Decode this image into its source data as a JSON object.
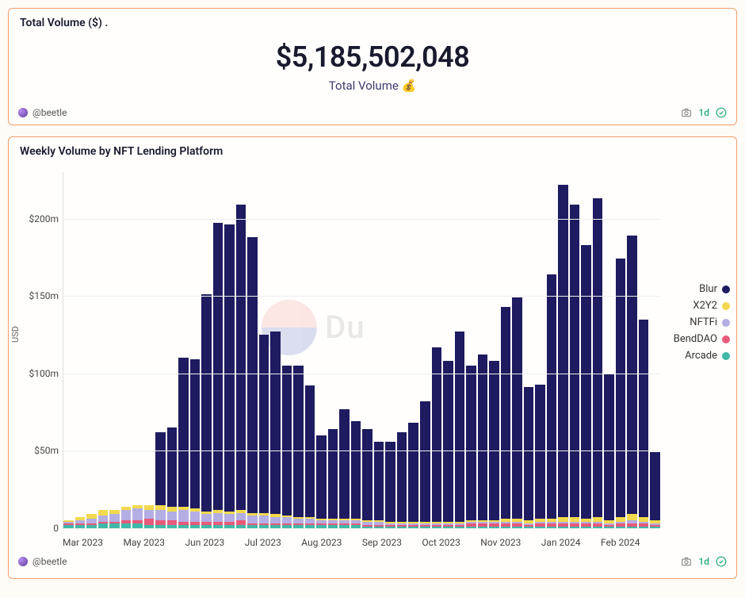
{
  "summary": {
    "title": "Total Volume ($)   .",
    "value": "$5,185,502,048",
    "label": "Total Volume 💰",
    "author": "@beetle",
    "age": "1d"
  },
  "chart": {
    "title": "Weekly Volume by NFT Lending Platform",
    "author": "@beetle",
    "age": "1d",
    "type": "stacked-bar",
    "y_label": "USD",
    "y_max": 230,
    "y_ticks": [
      {
        "v": 0,
        "label": "0"
      },
      {
        "v": 50,
        "label": "$50m"
      },
      {
        "v": 100,
        "label": "$100m"
      },
      {
        "v": 150,
        "label": "$150m"
      },
      {
        "v": 200,
        "label": "$200m"
      }
    ],
    "x_ticks": [
      "Mar 2023",
      "",
      "May 2023",
      "",
      "Jun 2023",
      "",
      "Jul 2023",
      "",
      "Aug 2023",
      "",
      "Sep 2023",
      "",
      "Oct 2023",
      "",
      "Nov 2023",
      "",
      "Jan 2024",
      "",
      "Feb 2024",
      ""
    ],
    "series": [
      {
        "key": "Blur",
        "color": "#1e1b60"
      },
      {
        "key": "X2Y2",
        "color": "#f2d94e"
      },
      {
        "key": "NFTFi",
        "color": "#b3aee3"
      },
      {
        "key": "BendDAO",
        "color": "#e85a7a"
      },
      {
        "key": "Arcade",
        "color": "#3fb8a8"
      }
    ],
    "weeks": [
      {
        "Arcade": 2,
        "BendDAO": 1,
        "NFTFi": 1,
        "X2Y2": 1,
        "Blur": 0
      },
      {
        "Arcade": 2,
        "BendDAO": 1,
        "NFTFi": 2,
        "X2Y2": 2,
        "Blur": 0
      },
      {
        "Arcade": 2,
        "BendDAO": 1,
        "NFTFi": 3,
        "X2Y2": 3,
        "Blur": 0
      },
      {
        "Arcade": 3,
        "BendDAO": 1,
        "NFTFi": 4,
        "X2Y2": 4,
        "Blur": 0
      },
      {
        "Arcade": 3,
        "BendDAO": 1,
        "NFTFi": 5,
        "X2Y2": 3,
        "Blur": 0
      },
      {
        "Arcade": 3,
        "BendDAO": 2,
        "NFTFi": 7,
        "X2Y2": 2,
        "Blur": 0
      },
      {
        "Arcade": 3,
        "BendDAO": 2,
        "NFTFi": 8,
        "X2Y2": 2,
        "Blur": 0
      },
      {
        "Arcade": 2,
        "BendDAO": 4,
        "NFTFi": 6,
        "X2Y2": 3,
        "Blur": 0
      },
      {
        "Arcade": 2,
        "BendDAO": 3,
        "NFTFi": 7,
        "X2Y2": 3,
        "Blur": 47
      },
      {
        "Arcade": 2,
        "BendDAO": 3,
        "NFTFi": 6,
        "X2Y2": 3,
        "Blur": 51
      },
      {
        "Arcade": 2,
        "BendDAO": 2,
        "NFTFi": 8,
        "X2Y2": 2,
        "Blur": 96
      },
      {
        "Arcade": 2,
        "BendDAO": 2,
        "NFTFi": 7,
        "X2Y2": 2,
        "Blur": 96
      },
      {
        "Arcade": 2,
        "BendDAO": 2,
        "NFTFi": 5,
        "X2Y2": 2,
        "Blur": 140
      },
      {
        "Arcade": 2,
        "BendDAO": 2,
        "NFTFi": 6,
        "X2Y2": 2,
        "Blur": 185
      },
      {
        "Arcade": 2,
        "BendDAO": 2,
        "NFTFi": 5,
        "X2Y2": 2,
        "Blur": 185
      },
      {
        "Arcade": 2,
        "BendDAO": 3,
        "NFTFi": 5,
        "X2Y2": 2,
        "Blur": 197
      },
      {
        "Arcade": 2,
        "BendDAO": 1,
        "NFTFi": 5,
        "X2Y2": 2,
        "Blur": 178
      },
      {
        "Arcade": 2,
        "BendDAO": 1,
        "NFTFi": 5,
        "X2Y2": 2,
        "Blur": 115
      },
      {
        "Arcade": 2,
        "BendDAO": 1,
        "NFTFi": 4,
        "X2Y2": 2,
        "Blur": 118
      },
      {
        "Arcade": 2,
        "BendDAO": 1,
        "NFTFi": 4,
        "X2Y2": 1,
        "Blur": 97
      },
      {
        "Arcade": 2,
        "BendDAO": 1,
        "NFTFi": 3,
        "X2Y2": 1,
        "Blur": 98
      },
      {
        "Arcade": 2,
        "BendDAO": 1,
        "NFTFi": 3,
        "X2Y2": 1,
        "Blur": 85
      },
      {
        "Arcade": 2,
        "BendDAO": 1,
        "NFTFi": 2,
        "X2Y2": 1,
        "Blur": 54
      },
      {
        "Arcade": 2,
        "BendDAO": 1,
        "NFTFi": 2,
        "X2Y2": 1,
        "Blur": 58
      },
      {
        "Arcade": 2,
        "BendDAO": 1,
        "NFTFi": 2,
        "X2Y2": 1,
        "Blur": 71
      },
      {
        "Arcade": 2,
        "BendDAO": 1,
        "NFTFi": 2,
        "X2Y2": 1,
        "Blur": 63
      },
      {
        "Arcade": 1,
        "BendDAO": 1,
        "NFTFi": 2,
        "X2Y2": 1,
        "Blur": 59
      },
      {
        "Arcade": 1,
        "BendDAO": 1,
        "NFTFi": 2,
        "X2Y2": 1,
        "Blur": 51
      },
      {
        "Arcade": 1,
        "BendDAO": 1,
        "NFTFi": 1,
        "X2Y2": 1,
        "Blur": 52
      },
      {
        "Arcade": 1,
        "BendDAO": 1,
        "NFTFi": 1,
        "X2Y2": 1,
        "Blur": 58
      },
      {
        "Arcade": 1,
        "BendDAO": 1,
        "NFTFi": 1,
        "X2Y2": 1,
        "Blur": 64
      },
      {
        "Arcade": 1,
        "BendDAO": 1,
        "NFTFi": 1,
        "X2Y2": 1,
        "Blur": 78
      },
      {
        "Arcade": 1,
        "BendDAO": 1,
        "NFTFi": 1,
        "X2Y2": 1,
        "Blur": 113
      },
      {
        "Arcade": 1,
        "BendDAO": 1,
        "NFTFi": 1,
        "X2Y2": 1,
        "Blur": 104
      },
      {
        "Arcade": 1,
        "BendDAO": 1,
        "NFTFi": 1,
        "X2Y2": 1,
        "Blur": 123
      },
      {
        "Arcade": 1,
        "BendDAO": 2,
        "NFTFi": 1,
        "X2Y2": 1,
        "Blur": 100
      },
      {
        "Arcade": 1,
        "BendDAO": 2,
        "NFTFi": 1,
        "X2Y2": 1,
        "Blur": 107
      },
      {
        "Arcade": 1,
        "BendDAO": 2,
        "NFTFi": 1,
        "X2Y2": 1,
        "Blur": 103
      },
      {
        "Arcade": 1,
        "BendDAO": 2,
        "NFTFi": 1,
        "X2Y2": 2,
        "Blur": 137
      },
      {
        "Arcade": 1,
        "BendDAO": 2,
        "NFTFi": 1,
        "X2Y2": 2,
        "Blur": 143
      },
      {
        "Arcade": 1,
        "BendDAO": 1,
        "NFTFi": 1,
        "X2Y2": 2,
        "Blur": 86
      },
      {
        "Arcade": 1,
        "BendDAO": 2,
        "NFTFi": 1,
        "X2Y2": 2,
        "Blur": 87
      },
      {
        "Arcade": 1,
        "BendDAO": 2,
        "NFTFi": 1,
        "X2Y2": 2,
        "Blur": 158
      },
      {
        "Arcade": 1,
        "BendDAO": 2,
        "NFTFi": 1,
        "X2Y2": 3,
        "Blur": 215
      },
      {
        "Arcade": 1,
        "BendDAO": 2,
        "NFTFi": 1,
        "X2Y2": 3,
        "Blur": 202
      },
      {
        "Arcade": 1,
        "BendDAO": 2,
        "NFTFi": 1,
        "X2Y2": 2,
        "Blur": 177
      },
      {
        "Arcade": 1,
        "BendDAO": 2,
        "NFTFi": 1,
        "X2Y2": 3,
        "Blur": 206
      },
      {
        "Arcade": 1,
        "BendDAO": 1,
        "NFTFi": 1,
        "X2Y2": 2,
        "Blur": 95
      },
      {
        "Arcade": 1,
        "BendDAO": 2,
        "NFTFi": 1,
        "X2Y2": 3,
        "Blur": 167
      },
      {
        "Arcade": 1,
        "BendDAO": 2,
        "NFTFi": 2,
        "X2Y2": 4,
        "Blur": 180
      },
      {
        "Arcade": 1,
        "BendDAO": 2,
        "NFTFi": 1,
        "X2Y2": 3,
        "Blur": 128
      },
      {
        "Arcade": 1,
        "BendDAO": 1,
        "NFTFi": 1,
        "X2Y2": 2,
        "Blur": 44
      }
    ]
  },
  "watermark": "Du"
}
